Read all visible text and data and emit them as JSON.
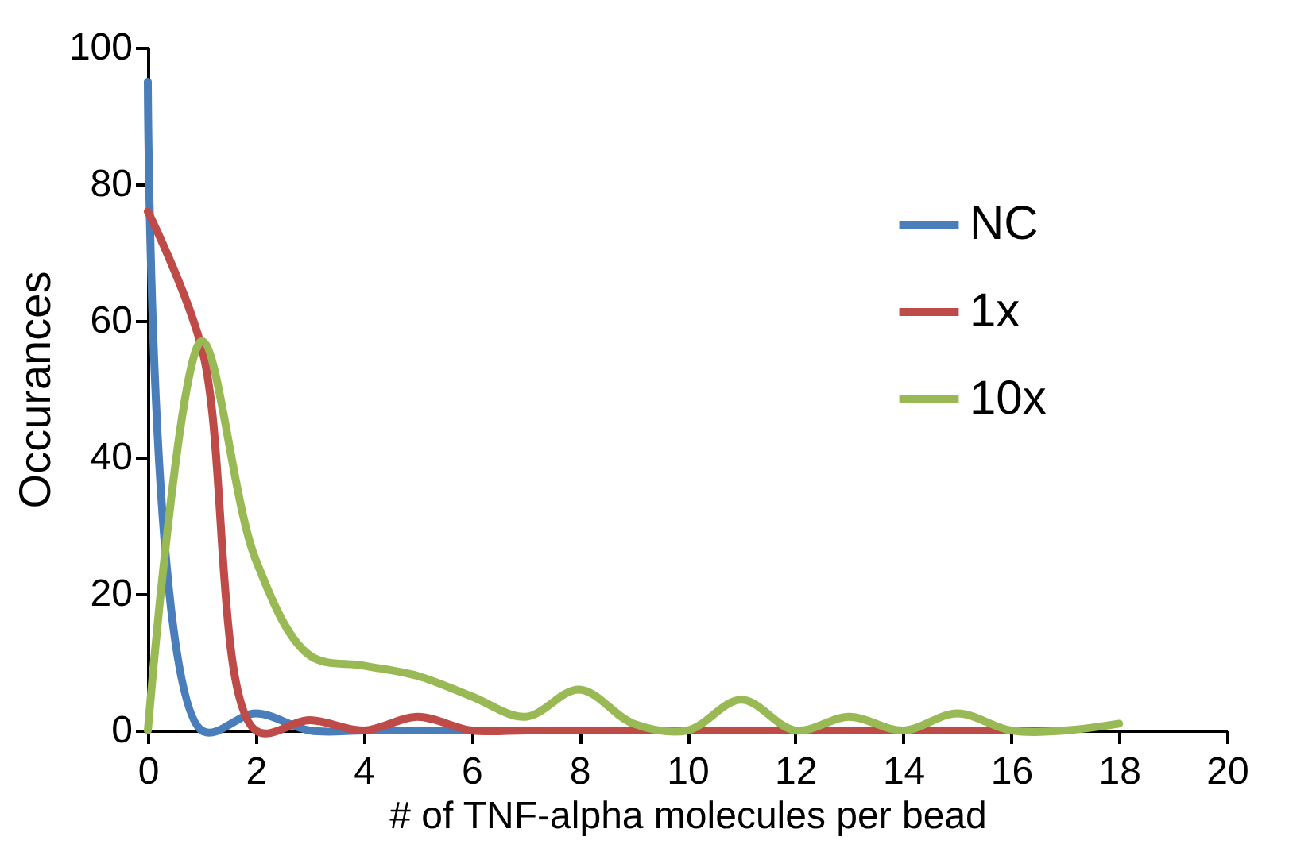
{
  "chart_data": {
    "type": "line",
    "xlabel": "# of TNF-alpha molecules per bead",
    "ylabel": "Occurances",
    "x": [
      0,
      1,
      2,
      3,
      4,
      5,
      6,
      7,
      8,
      9,
      10,
      11,
      12,
      13,
      14,
      15,
      16,
      17,
      18
    ],
    "series": [
      {
        "name": "NC",
        "color": "#4a7ebb",
        "values": [
          95,
          0,
          2.5,
          0,
          0,
          0,
          0,
          null,
          null,
          null,
          null,
          null,
          null,
          null,
          null,
          null,
          null,
          null,
          null
        ]
      },
      {
        "name": "1x",
        "color": "#be4b48",
        "values": [
          76,
          56,
          0,
          1.5,
          0,
          2,
          0,
          0,
          0,
          0,
          0,
          0,
          0,
          0,
          0,
          0,
          0,
          0,
          null
        ]
      },
      {
        "name": "10x",
        "color": "#98b954",
        "values": [
          0,
          57,
          25,
          11,
          9.5,
          8,
          5,
          2,
          6,
          1,
          0,
          4.5,
          0,
          2,
          0,
          2.5,
          0,
          0,
          1
        ]
      }
    ],
    "xlim": [
      0,
      20
    ],
    "xticks": [
      0,
      2,
      4,
      6,
      8,
      10,
      12,
      14,
      16,
      18,
      20
    ],
    "ylim": [
      0,
      100
    ],
    "yticks": [
      0,
      20,
      40,
      60,
      80,
      100
    ],
    "grid": false,
    "legend": "top right",
    "marker": "none",
    "line_style": "solid"
  }
}
